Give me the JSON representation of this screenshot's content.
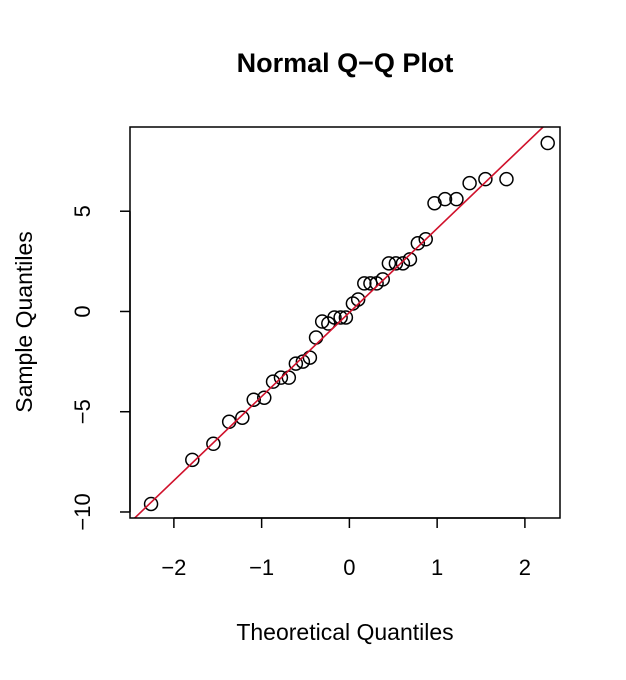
{
  "chart_data": {
    "type": "scatter",
    "title": "Normal Q−Q Plot",
    "xlabel": "Theoretical Quantiles",
    "ylabel": "Sample Quantiles",
    "xlim": [
      -2.5,
      2.4
    ],
    "ylim": [
      -10.3,
      9.2
    ],
    "x_ticks": [
      -2,
      -1,
      0,
      1,
      2
    ],
    "x_tick_labels": [
      "−2",
      "−1",
      "0",
      "1",
      "2"
    ],
    "y_ticks": [
      -10,
      -5,
      0,
      5
    ],
    "y_tick_labels": [
      "−10",
      "−5",
      "0",
      "5"
    ],
    "grid": false,
    "legend": "none",
    "point_color": "#000000",
    "line_color": "#d0112b",
    "reference_line": {
      "intercept": -0.05,
      "slope": 4.19
    },
    "series": [
      {
        "x": [
          -2.26,
          -1.79,
          -1.55,
          -1.37,
          -1.22,
          -1.09,
          -0.97,
          -0.87,
          -0.78,
          -0.69,
          -0.61,
          -0.53,
          -0.45,
          -0.38,
          -0.31,
          -0.24,
          -0.17,
          -0.1,
          -0.04,
          0.04,
          0.1,
          0.17,
          0.24,
          0.31,
          0.38,
          0.45,
          0.53,
          0.61,
          0.69,
          0.78,
          0.87,
          0.97,
          1.09,
          1.22,
          1.37,
          1.55,
          1.79,
          2.26
        ],
        "y": [
          -9.6,
          -7.4,
          -6.6,
          -5.5,
          -5.3,
          -4.4,
          -4.3,
          -3.5,
          -3.3,
          -3.3,
          -2.6,
          -2.5,
          -2.3,
          -1.3,
          -0.5,
          -0.6,
          -0.3,
          -0.3,
          -0.3,
          0.4,
          0.6,
          1.4,
          1.4,
          1.4,
          1.6,
          2.4,
          2.4,
          2.4,
          2.6,
          3.4,
          3.6,
          5.4,
          5.6,
          5.6,
          6.4,
          6.6,
          6.6,
          8.4
        ]
      }
    ]
  }
}
